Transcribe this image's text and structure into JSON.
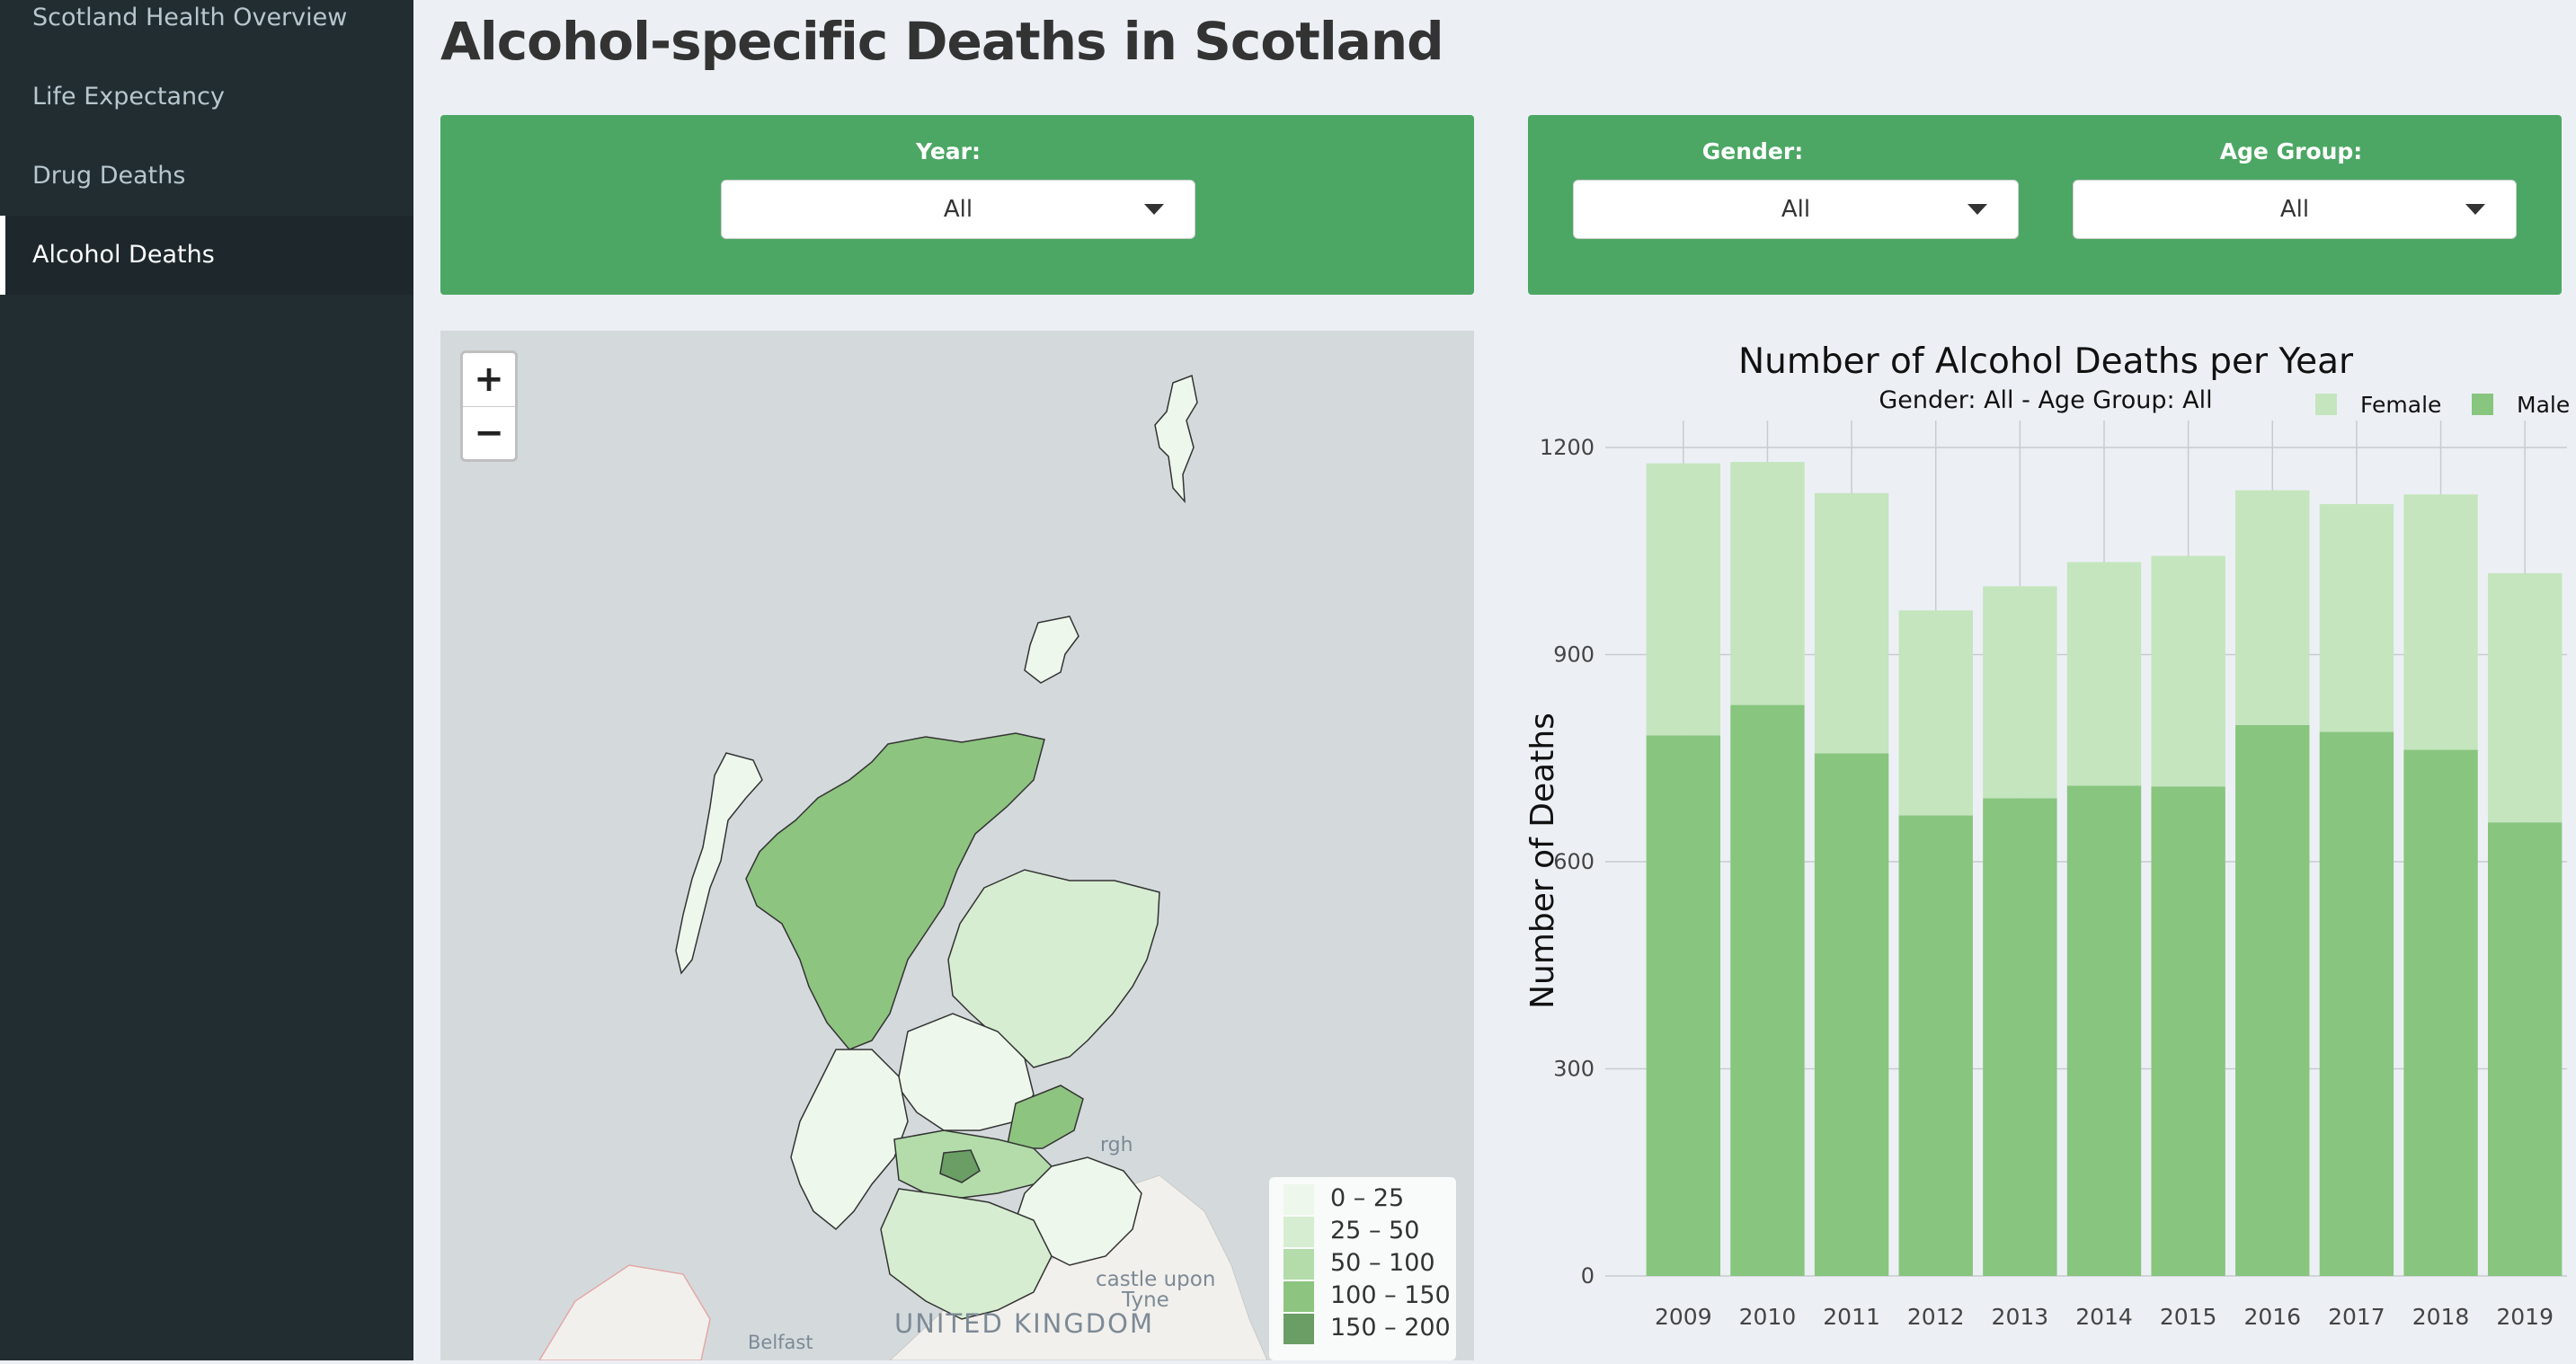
{
  "sidebar": {
    "items": [
      {
        "label": "Scotland Health Overview",
        "active": false
      },
      {
        "label": "Life Expectancy",
        "active": false
      },
      {
        "label": "Drug Deaths",
        "active": false
      },
      {
        "label": "Alcohol Deaths",
        "active": true
      }
    ]
  },
  "page": {
    "title": "Alcohol-specific Deaths in Scotland"
  },
  "filters": {
    "year": {
      "label": "Year:",
      "value": "All"
    },
    "gender": {
      "label": "Gender:",
      "value": "All"
    },
    "age_group": {
      "label": "Age Group:",
      "value": "All"
    }
  },
  "map": {
    "zoom_in": "+",
    "zoom_out": "−",
    "labels": {
      "country": "UNITED KINGDOM",
      "city1": "castle upon",
      "city2": "Tyne",
      "city3": "Belfast",
      "city4": "rgh"
    },
    "legend": [
      {
        "label": "0 – 25",
        "color": "#eef7ec"
      },
      {
        "label": "25 – 50",
        "color": "#d7edd1"
      },
      {
        "label": "50 – 100",
        "color": "#b3dcaa"
      },
      {
        "label": "100 – 150",
        "color": "#8dc47f"
      },
      {
        "label": "150 – 200",
        "color": "#6a9e64"
      }
    ]
  },
  "chart_data": {
    "type": "bar",
    "stacked": true,
    "title": "Number of Alcohol Deaths per Year",
    "subtitle": "Gender: All  -  Age Group: All",
    "xlabel": "",
    "ylabel": "Number of Deaths",
    "ylim": [
      0,
      1200
    ],
    "yticks": [
      0,
      300,
      600,
      900,
      1200
    ],
    "grid": true,
    "legend_position": "top-right",
    "categories": [
      "2009",
      "2010",
      "2011",
      "2012",
      "2013",
      "2014",
      "2015",
      "2016",
      "2017",
      "2018",
      "2019"
    ],
    "series": [
      {
        "name": "Male",
        "color": "#88c57f",
        "values": [
          783,
          827,
          757,
          667,
          692,
          710,
          709,
          798,
          788,
          762,
          657
        ]
      },
      {
        "name": "Female",
        "color": "#c4e5bd",
        "values": [
          394,
          352,
          377,
          297,
          307,
          324,
          334,
          340,
          330,
          370,
          361
        ]
      }
    ]
  }
}
